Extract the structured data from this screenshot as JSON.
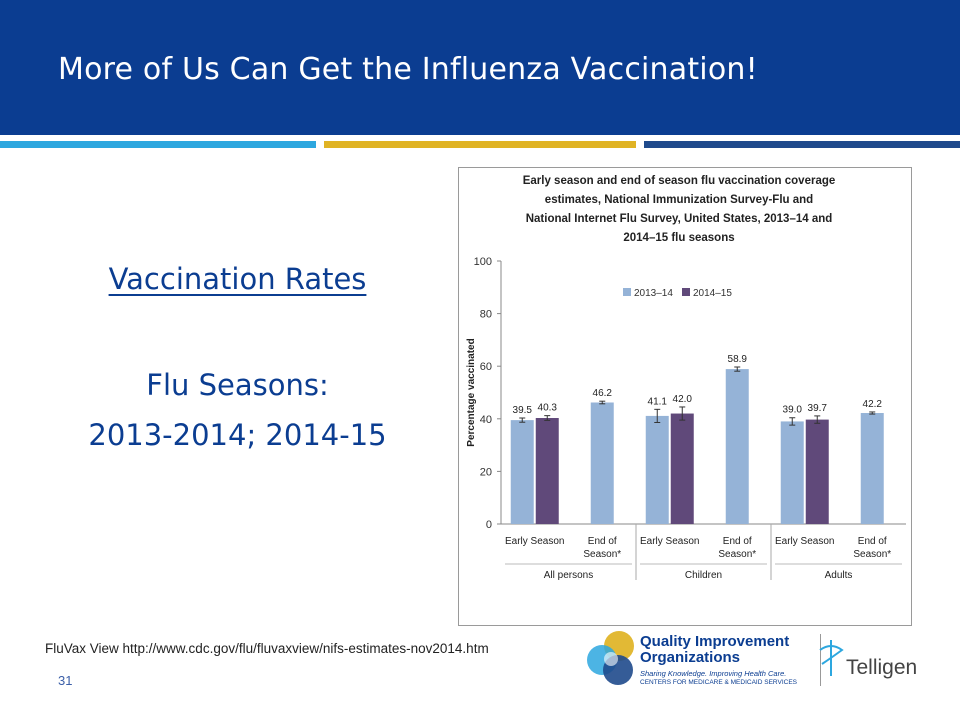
{
  "slide": {
    "title": "More of Us Can Get the Influenza Vaccination!",
    "heading_link": "Vaccination Rates",
    "subheading": "Flu Seasons:",
    "years": "2013-2014; 2014-15",
    "source": "FluVax View http://www.cdc.gov/flu/fluvaxview/nifs-estimates-nov2014.htm",
    "page_number": "31"
  },
  "colors": {
    "header_blue": "#0b3d91",
    "stripe_light_blue": "#2da7df",
    "stripe_gold": "#e0b324",
    "stripe_navy": "#1f4a8c",
    "series_2013": "#95b3d7",
    "series_2014": "#60497a"
  },
  "logos": {
    "qio_line1": "Quality Improvement",
    "qio_line2": "Organizations",
    "qio_tagline": "Sharing Knowledge. Improving Health Care.",
    "qio_cms": "CENTERS FOR MEDICARE & MEDICAID SERVICES",
    "telligen": "Telligen"
  },
  "chart_data": {
    "type": "bar",
    "title_lines": [
      "Early season and end of season flu vaccination coverage",
      "estimates, National Immunization Survey-Flu and",
      "National Internet Flu Survey, United States,  2013–14 and",
      "2014–15 flu seasons"
    ],
    "ylabel": "Percentage vaccinated",
    "ylim": [
      0,
      100
    ],
    "yticks": [
      0,
      20,
      40,
      60,
      80,
      100
    ],
    "legend": [
      "2013–14",
      "2014–15"
    ],
    "legend_position": "top-right",
    "groups": [
      "All persons",
      "Children",
      "Adults"
    ],
    "subcategories": [
      "Early Season",
      "End of Season*"
    ],
    "bars": [
      {
        "group": "All persons",
        "sub": "Early Season",
        "series": "2013–14",
        "value": 39.5,
        "label": "39.5",
        "err": 0.8
      },
      {
        "group": "All persons",
        "sub": "Early Season",
        "series": "2014–15",
        "value": 40.3,
        "label": "40.3",
        "err": 0.9
      },
      {
        "group": "All persons",
        "sub": "End of Season*",
        "series": "2013–14",
        "value": 46.2,
        "label": "46.2",
        "err": 0.5
      },
      {
        "group": "Children",
        "sub": "Early Season",
        "series": "2013–14",
        "value": 41.1,
        "label": "41.1",
        "err": 2.5
      },
      {
        "group": "Children",
        "sub": "Early Season",
        "series": "2014–15",
        "value": 42.0,
        "label": "42.0",
        "err": 2.5
      },
      {
        "group": "Children",
        "sub": "End of Season*",
        "series": "2013–14",
        "value": 58.9,
        "label": "58.9",
        "err": 0.8
      },
      {
        "group": "Adults",
        "sub": "Early Season",
        "series": "2013–14",
        "value": 39.0,
        "label": "39.0",
        "err": 1.4
      },
      {
        "group": "Adults",
        "sub": "Early Season",
        "series": "2014–15",
        "value": 39.7,
        "label": "39.7",
        "err": 1.4
      },
      {
        "group": "Adults",
        "sub": "End of Season*",
        "series": "2013–14",
        "value": 42.2,
        "label": "42.2",
        "err": 0.4
      }
    ]
  }
}
